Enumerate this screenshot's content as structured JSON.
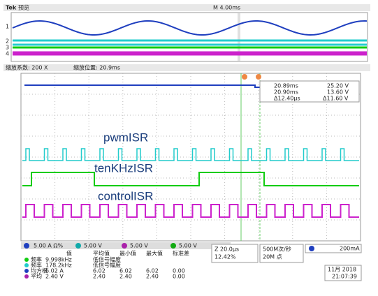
{
  "header": {
    "brand": "Tek",
    "mode": "预览",
    "timebase": "M 4.00ms"
  },
  "zoom": {
    "factor": "缩放系数: 200 X",
    "position": "缩放位置: 20.9ms"
  },
  "cursors": {
    "t1": "20.89ms",
    "v1": "25.20 V",
    "t2": "20.90ms",
    "v2": "13.60 V",
    "dt": "Δ12.40μs",
    "dv": "Δ11.60 V"
  },
  "labels": [
    "pwmISR",
    "tenKHzISR",
    "controlISR"
  ],
  "channels": [
    {
      "id": "1",
      "scale": "5.00 A Ω%"
    },
    {
      "id": "2",
      "scale": "5.00 V"
    },
    {
      "id": "3",
      "scale": "5.00 V"
    },
    {
      "id": "4",
      "scale": "5.00 V"
    }
  ],
  "measurements": {
    "headers": [
      "值",
      "平均值",
      "最小值",
      "最大值",
      "标准差"
    ],
    "rows": [
      [
        "频率",
        "9.998kHz",
        "低信号幅度"
      ],
      [
        "频率",
        "178.2kHz",
        "低信号幅度"
      ],
      [
        "均方根",
        "6.02 A",
        "6.02",
        "6.02",
        "6.02",
        "0.00"
      ],
      [
        "平均",
        "2.40 V",
        "2.40",
        "2.40",
        "2.40",
        "0.00"
      ]
    ]
  },
  "status": {
    "zoom_time": "Z 20.0μs",
    "trigger_pos": "12.42%",
    "sample_rate": "500M次/秒",
    "record": "20M 点",
    "trigger_level": "200mA",
    "date": "11月 2018",
    "time": "21:07:39"
  }
}
